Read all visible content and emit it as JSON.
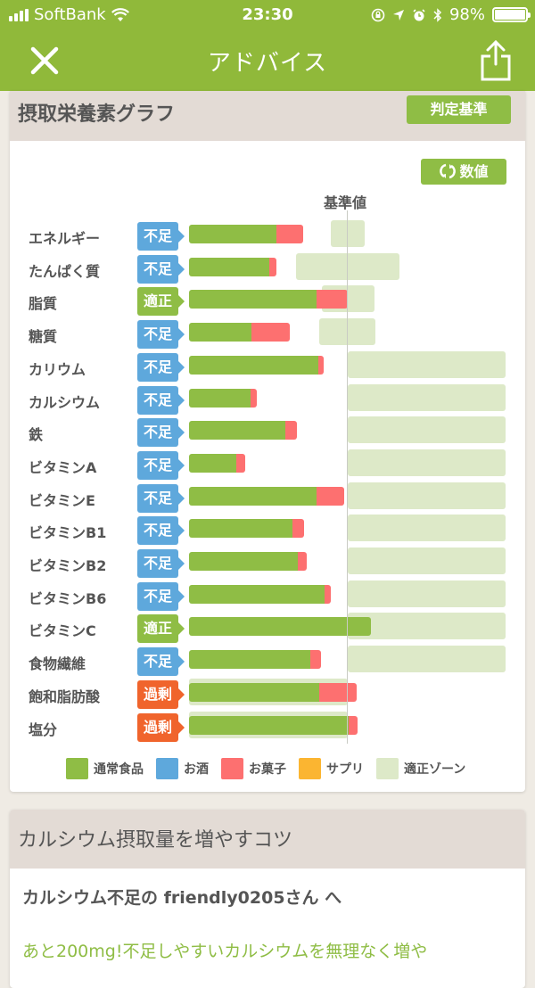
{
  "status_bar": {
    "carrier": "SoftBank",
    "time": "23:30",
    "battery": "98%"
  },
  "nav": {
    "title": "アドバイス",
    "close_icon": "close-icon",
    "share_icon": "share-icon"
  },
  "graph_card": {
    "title": "摂取栄養素グラフ",
    "criteria_button": "判定基準",
    "toggle_button": "数値",
    "reference_label": "基準値"
  },
  "chart_data": {
    "type": "bar",
    "orientation": "horizontal-stacked",
    "title": "摂取栄養素グラフ",
    "reference_label": "基準値",
    "units": "relative pixel position (bar origin 0, reference line at 178)",
    "categories": [
      "エネルギー",
      "たんぱく質",
      "脂質",
      "糖質",
      "カリウム",
      "カルシウム",
      "鉄",
      "ビタミンA",
      "ビタミンE",
      "ビタミンB1",
      "ビタミンB2",
      "ビタミンB6",
      "ビタミンC",
      "食物繊維",
      "飽和脂肪酸",
      "塩分"
    ],
    "status": [
      "不足",
      "不足",
      "適正",
      "不足",
      "不足",
      "不足",
      "不足",
      "不足",
      "不足",
      "不足",
      "不足",
      "不足",
      "適正",
      "不足",
      "過剰",
      "過剰"
    ],
    "series": [
      {
        "name": "通常食品",
        "color": "#8fbd45",
        "values": [
          98,
          90,
          143,
          70,
          145,
          69,
          108,
          53,
          143,
          116,
          122,
          152,
          204,
          136,
          146,
          179
        ]
      },
      {
        "name": "お酒",
        "color": "#5ea8dc",
        "values": [
          0,
          0,
          0,
          0,
          0,
          0,
          0,
          0,
          0,
          0,
          0,
          0,
          0,
          0,
          0,
          0
        ]
      },
      {
        "name": "お菓子",
        "color": "#fd7070",
        "values": [
          30,
          8,
          35,
          43,
          6,
          7,
          13,
          10,
          31,
          13,
          10,
          7,
          0,
          12,
          42,
          10
        ]
      },
      {
        "name": "サプリ",
        "color": "#fbb531",
        "values": [
          0,
          0,
          0,
          0,
          0,
          0,
          0,
          0,
          0,
          0,
          0,
          0,
          0,
          0,
          0,
          0
        ]
      }
    ],
    "zones": [
      [
        159,
        197
      ],
      [
        120,
        236
      ],
      [
        149,
        208
      ],
      [
        146,
        209
      ],
      [
        178,
        355
      ],
      [
        178,
        355
      ],
      [
        178,
        355
      ],
      [
        178,
        355
      ],
      [
        178,
        355
      ],
      [
        178,
        355
      ],
      [
        178,
        355
      ],
      [
        178,
        355
      ],
      [
        178,
        355
      ],
      [
        178,
        355
      ],
      [
        0,
        178
      ],
      [
        0,
        178
      ]
    ],
    "legend": [
      "通常食品",
      "お酒",
      "お菓子",
      "サプリ",
      "適正ゾーン"
    ],
    "legend_position": "bottom"
  },
  "rows": [
    {
      "name": "エネルギー",
      "status": "不足",
      "cls": "lack",
      "g": 98,
      "r": 30,
      "z": [
        159,
        38
      ]
    },
    {
      "name": "たんぱく質",
      "status": "不足",
      "cls": "lack",
      "g": 90,
      "r": 8,
      "z": [
        120,
        116
      ]
    },
    {
      "name": "脂質",
      "status": "適正",
      "cls": "ok",
      "g": 143,
      "r": 35,
      "z": [
        149,
        59
      ]
    },
    {
      "name": "糖質",
      "status": "不足",
      "cls": "lack",
      "g": 70,
      "r": 43,
      "z": [
        146,
        63
      ]
    },
    {
      "name": "カリウム",
      "status": "不足",
      "cls": "lack",
      "g": 145,
      "r": 6,
      "z": [
        178,
        177
      ]
    },
    {
      "name": "カルシウム",
      "status": "不足",
      "cls": "lack",
      "g": 69,
      "r": 7,
      "z": [
        178,
        177
      ]
    },
    {
      "name": "鉄",
      "status": "不足",
      "cls": "lack",
      "g": 108,
      "r": 13,
      "z": [
        178,
        177
      ]
    },
    {
      "name": "ビタミンA",
      "status": "不足",
      "cls": "lack",
      "g": 53,
      "r": 10,
      "z": [
        178,
        177
      ]
    },
    {
      "name": "ビタミンE",
      "status": "不足",
      "cls": "lack",
      "g": 143,
      "r": 31,
      "z": [
        178,
        177
      ]
    },
    {
      "name": "ビタミンB1",
      "status": "不足",
      "cls": "lack",
      "g": 116,
      "r": 13,
      "z": [
        178,
        177
      ]
    },
    {
      "name": "ビタミンB2",
      "status": "不足",
      "cls": "lack",
      "g": 122,
      "r": 10,
      "z": [
        178,
        177
      ]
    },
    {
      "name": "ビタミンB6",
      "status": "不足",
      "cls": "lack",
      "g": 152,
      "r": 7,
      "z": [
        178,
        177
      ]
    },
    {
      "name": "ビタミンC",
      "status": "適正",
      "cls": "ok",
      "g": 204,
      "r": 0,
      "z": [
        178,
        177
      ]
    },
    {
      "name": "食物繊維",
      "status": "不足",
      "cls": "lack",
      "g": 136,
      "r": 12,
      "z": [
        178,
        177
      ]
    },
    {
      "name": "飽和脂肪酸",
      "status": "過剰",
      "cls": "over",
      "g": 146,
      "r": 42,
      "z": [
        0,
        178
      ]
    },
    {
      "name": "塩分",
      "status": "過剰",
      "cls": "over",
      "g": 179,
      "r": 10,
      "z": [
        0,
        178
      ]
    }
  ],
  "legend": [
    {
      "label": "通常食品",
      "color": "#8fbd45"
    },
    {
      "label": "お酒",
      "color": "#5ea8dc"
    },
    {
      "label": "お菓子",
      "color": "#fd7070"
    },
    {
      "label": "サプリ",
      "color": "#fbb531"
    },
    {
      "label": "適正ゾーン",
      "color": "#dde9c8"
    }
  ],
  "tips_card": {
    "title": "カルシウム摂取量を増やすコツ",
    "greeting": "カルシウム不足の friendly0205さん へ",
    "body": "あと200mg!不足しやすいカルシウムを無理なく増や"
  }
}
